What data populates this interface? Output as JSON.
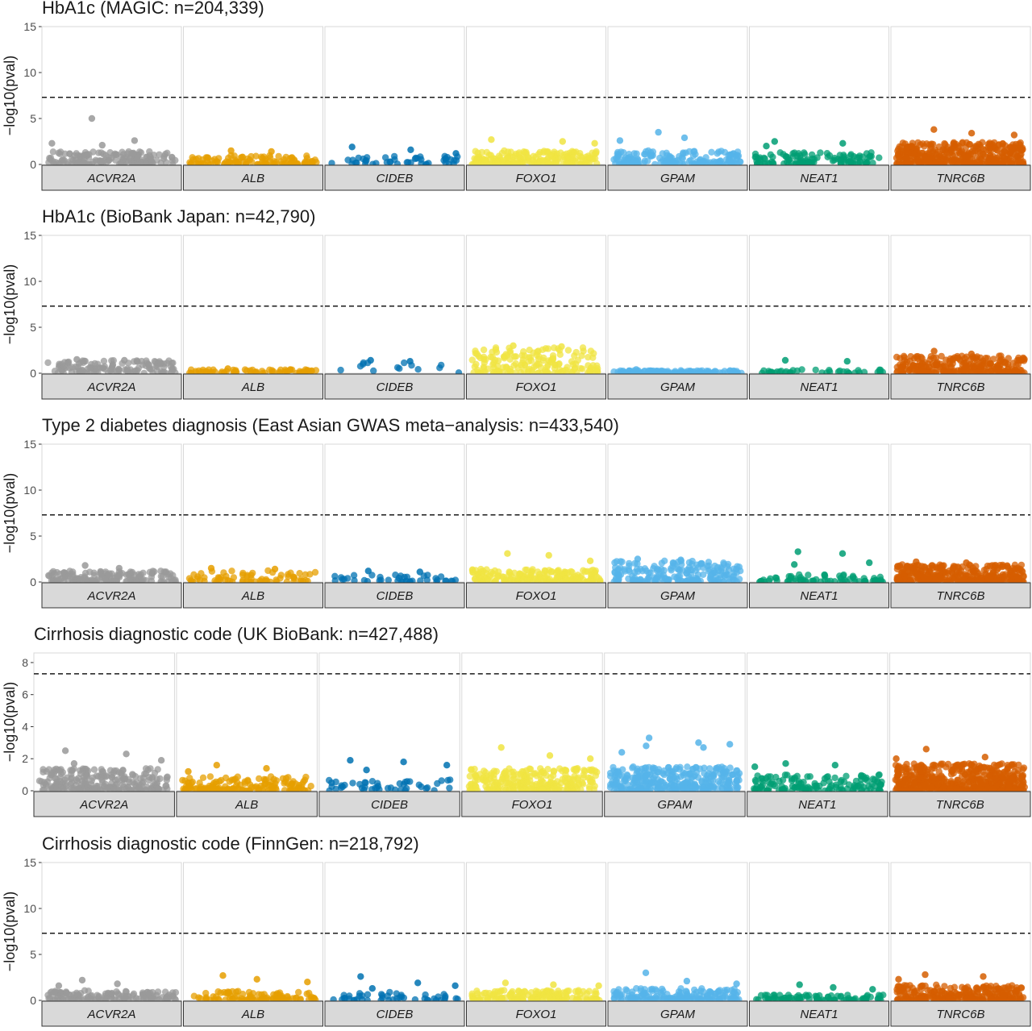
{
  "chart_data": {
    "type": "scatter",
    "genes": [
      "ACVR2A",
      "ALB",
      "CIDEB",
      "FOXO1",
      "GPAM",
      "NEAT1",
      "TNRC6B"
    ],
    "gene_colors": {
      "ACVR2A": "#999999",
      "ALB": "#E69F00",
      "CIDEB": "#0072B2",
      "FOXO1": "#F0E442",
      "GPAM": "#56B4E9",
      "NEAT1": "#009E73",
      "TNRC6B": "#D55E00"
    },
    "ylabel": "−log10(pval)",
    "threshold": 7.3,
    "panels": [
      {
        "title": "HbA1c (MAGIC: n=204,339)",
        "ylim": [
          0,
          15
        ],
        "yticks": [
          0,
          5,
          10,
          15
        ],
        "genes": [
          {
            "gene": "ACVR2A",
            "n": 160,
            "base": 1.4,
            "highlights": [
              5.0,
              2.6,
              2.3,
              2.1
            ]
          },
          {
            "gene": "ALB",
            "n": 110,
            "base": 1.0,
            "highlights": [
              1.5,
              1.4
            ]
          },
          {
            "gene": "CIDEB",
            "n": 45,
            "base": 0.9,
            "highlights": [
              1.9,
              1.6,
              1.2
            ]
          },
          {
            "gene": "FOXO1",
            "n": 190,
            "base": 1.5,
            "highlights": [
              2.7,
              2.5,
              2.3
            ]
          },
          {
            "gene": "GPAM",
            "n": 170,
            "base": 1.5,
            "highlights": [
              3.5,
              2.9,
              2.6
            ]
          },
          {
            "gene": "NEAT1",
            "n": 110,
            "base": 1.3,
            "highlights": [
              2.5,
              2.3,
              2.0
            ]
          },
          {
            "gene": "TNRC6B",
            "n": 380,
            "base": 2.4,
            "highlights": [
              3.8,
              3.4,
              3.2
            ]
          }
        ]
      },
      {
        "title": "HbA1c (BioBank Japan: n=42,790)",
        "ylim": [
          0,
          15
        ],
        "yticks": [
          0,
          5,
          10,
          15
        ],
        "genes": [
          {
            "gene": "ACVR2A",
            "n": 130,
            "base": 1.4,
            "highlights": [
              1.5,
              1.4
            ]
          },
          {
            "gene": "ALB",
            "n": 70,
            "base": 0.4,
            "highlights": [
              0.5
            ]
          },
          {
            "gene": "CIDEB",
            "n": 14,
            "base": 1.2,
            "highlights": [
              1.4,
              1.3
            ]
          },
          {
            "gene": "FOXO1",
            "n": 170,
            "base": 2.8,
            "highlights": [
              3.0,
              2.9
            ]
          },
          {
            "gene": "GPAM",
            "n": 120,
            "base": 0.3,
            "highlights": [
              0.4
            ]
          },
          {
            "gene": "NEAT1",
            "n": 40,
            "base": 0.4,
            "highlights": [
              1.4,
              1.3
            ]
          },
          {
            "gene": "TNRC6B",
            "n": 260,
            "base": 1.9,
            "highlights": [
              2.4,
              2.1
            ]
          }
        ]
      },
      {
        "title": "Type 2 diabetes diagnosis (East Asian GWAS meta−analysis: n=433,540)",
        "ylim": [
          0,
          15
        ],
        "yticks": [
          0,
          5,
          10,
          15
        ],
        "genes": [
          {
            "gene": "ACVR2A",
            "n": 160,
            "base": 1.2,
            "highlights": [
              1.8,
              1.5
            ]
          },
          {
            "gene": "ALB",
            "n": 70,
            "base": 1.3,
            "highlights": [
              1.5,
              1.4
            ]
          },
          {
            "gene": "CIDEB",
            "n": 40,
            "base": 0.8,
            "highlights": [
              1.2,
              1.1
            ]
          },
          {
            "gene": "FOXO1",
            "n": 190,
            "base": 1.4,
            "highlights": [
              3.1,
              2.9,
              2.3
            ]
          },
          {
            "gene": "GPAM",
            "n": 200,
            "base": 2.3,
            "highlights": [
              2.5,
              2.4
            ]
          },
          {
            "gene": "NEAT1",
            "n": 70,
            "base": 0.8,
            "highlights": [
              3.3,
              3.1,
              2.1,
              1.9
            ]
          },
          {
            "gene": "TNRC6B",
            "n": 330,
            "base": 1.9,
            "highlights": [
              2.2,
              2.1
            ]
          }
        ]
      },
      {
        "title": "Cirrhosis diagnostic code (UK BioBank: n=427,488)",
        "ylim": [
          0,
          8.6
        ],
        "yticks": [
          0,
          2,
          4,
          6,
          8
        ],
        "genes": [
          {
            "gene": "ACVR2A",
            "n": 240,
            "base": 1.4,
            "highlights": [
              2.5,
              2.3,
              1.9,
              1.7
            ]
          },
          {
            "gene": "ALB",
            "n": 150,
            "base": 0.9,
            "highlights": [
              1.6,
              1.4,
              1.2
            ]
          },
          {
            "gene": "CIDEB",
            "n": 45,
            "base": 0.7,
            "highlights": [
              1.9,
              1.8,
              1.6,
              1.3
            ]
          },
          {
            "gene": "FOXO1",
            "n": 260,
            "base": 1.4,
            "highlights": [
              2.7,
              2.2,
              2.0
            ]
          },
          {
            "gene": "GPAM",
            "n": 320,
            "base": 1.5,
            "highlights": [
              3.3,
              3.0,
              2.9,
              2.8,
              2.7,
              2.4
            ]
          },
          {
            "gene": "NEAT1",
            "n": 140,
            "base": 1.0,
            "highlights": [
              1.7,
              1.6,
              1.5
            ]
          },
          {
            "gene": "TNRC6B",
            "n": 520,
            "base": 1.7,
            "highlights": [
              2.6,
              2.1,
              2.0
            ]
          }
        ]
      },
      {
        "title": "Cirrhosis diagnostic code (FinnGen: n=218,792)",
        "ylim": [
          0,
          15
        ],
        "yticks": [
          0,
          5,
          10,
          15
        ],
        "genes": [
          {
            "gene": "ACVR2A",
            "n": 140,
            "base": 1.1,
            "highlights": [
              2.2,
              1.8,
              1.6
            ]
          },
          {
            "gene": "ALB",
            "n": 100,
            "base": 1.0,
            "highlights": [
              2.7,
              2.3,
              2.0
            ]
          },
          {
            "gene": "CIDEB",
            "n": 45,
            "base": 0.9,
            "highlights": [
              2.6,
              1.9,
              1.6,
              1.3
            ]
          },
          {
            "gene": "FOXO1",
            "n": 160,
            "base": 1.1,
            "highlights": [
              1.9,
              1.7,
              1.6
            ]
          },
          {
            "gene": "GPAM",
            "n": 170,
            "base": 1.3,
            "highlights": [
              3.0,
              2.1,
              1.8
            ]
          },
          {
            "gene": "NEAT1",
            "n": 90,
            "base": 0.6,
            "highlights": [
              1.7,
              1.4,
              1.2
            ]
          },
          {
            "gene": "TNRC6B",
            "n": 260,
            "base": 1.7,
            "highlights": [
              2.8,
              2.6,
              2.3
            ]
          }
        ]
      }
    ]
  }
}
